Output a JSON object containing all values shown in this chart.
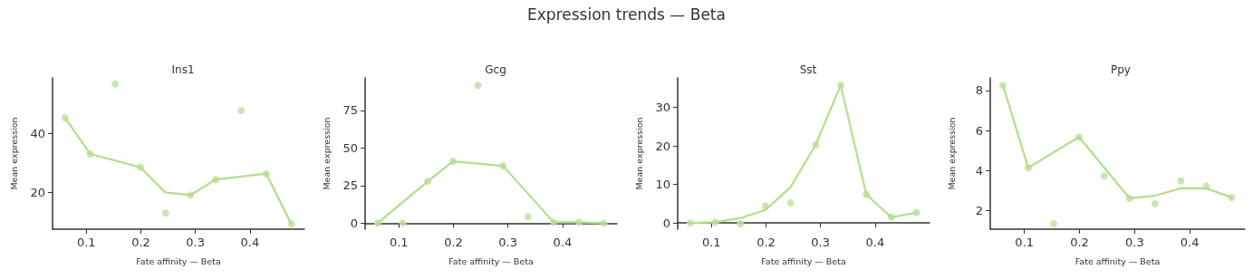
{
  "chart_data": [
    {
      "type": "scatter",
      "title": "Ins1",
      "annotations": [
        "Expression trends — Beta"
      ],
      "xlabel": "Fate affinity — Beta",
      "ylabel": "Mean expression",
      "xlim": [
        0.038,
        0.5
      ],
      "xticks": [
        0.1,
        0.2,
        0.3,
        0.4
      ],
      "ylim": [
        7.5,
        59
      ],
      "yticks": [
        20,
        40
      ],
      "grid": false,
      "line_style": "solid",
      "series": [
        {
          "color": "#bde3a0",
          "x": [
            0.061,
            0.107,
            0.153,
            0.199,
            0.245,
            0.291,
            0.337,
            0.384,
            0.43,
            0.476
          ],
          "values": [
            45.4,
            33.1,
            56.9,
            28.6,
            13.0,
            19.1,
            24.4,
            47.9,
            26.4,
            9.3
          ]
        },
        {
          "type": "line",
          "color": "#b2df8a",
          "x": [
            0.061,
            0.107,
            0.199,
            0.245,
            0.291,
            0.337,
            0.43,
            0.476
          ],
          "values": [
            45.4,
            33.1,
            28.6,
            20.0,
            19.1,
            24.4,
            26.4,
            9.3
          ]
        }
      ]
    },
    {
      "type": "scatter",
      "title": "Gcg",
      "xlabel": "Fate affinity — Beta",
      "ylabel": "Mean expression",
      "xlim": [
        0.038,
        0.5
      ],
      "xticks": [
        0.1,
        0.2,
        0.3,
        0.4
      ],
      "ylim": [
        -4,
        96.6
      ],
      "yticks": [
        0,
        25,
        50,
        75
      ],
      "grid": false,
      "line_style": "solid",
      "series": [
        {
          "color": "#bde3a0",
          "x": [
            0.061,
            0.107,
            0.153,
            0.199,
            0.245,
            0.291,
            0.337,
            0.384,
            0.43,
            0.476
          ],
          "values": [
            0,
            0,
            27.9,
            41.1,
            91.6,
            38.1,
            4.4,
            0.6,
            0.6,
            0
          ]
        },
        {
          "type": "line",
          "color": "#b2df8a",
          "x": [
            0.061,
            0.153,
            0.199,
            0.291,
            0.384,
            0.43,
            0.476
          ],
          "values": [
            0,
            27.9,
            41.1,
            38.1,
            0.6,
            0.6,
            0
          ]
        }
      ]
    },
    {
      "type": "scatter",
      "title": "Sst",
      "xlabel": "Fate affinity — Beta",
      "ylabel": "Mean expression",
      "xlim": [
        0.038,
        0.5
      ],
      "xticks": [
        0.1,
        0.2,
        0.3,
        0.4
      ],
      "ylim": [
        -1.6,
        37.7
      ],
      "yticks": [
        0,
        10,
        20,
        30
      ],
      "grid": false,
      "line_style": "solid",
      "series": [
        {
          "color": "#bde3a0",
          "x": [
            0.061,
            0.107,
            0.153,
            0.199,
            0.245,
            0.291,
            0.337,
            0.384,
            0.43,
            0.476
          ],
          "values": [
            0,
            0.2,
            -0.2,
            4.4,
            5.2,
            20.3,
            35.8,
            7.4,
            1.5,
            2.7
          ]
        },
        {
          "type": "line",
          "color": "#b2df8a",
          "x": [
            0.061,
            0.107,
            0.153,
            0.199,
            0.245,
            0.291,
            0.337,
            0.384,
            0.43,
            0.476
          ],
          "values": [
            0,
            0.2,
            1.3,
            3.4,
            9.3,
            20.3,
            35.8,
            7.4,
            1.5,
            2.7
          ]
        }
      ]
    },
    {
      "type": "scatter",
      "title": "Ppy",
      "xlabel": "Fate affinity — Beta",
      "ylabel": "Mean expression",
      "xlim": [
        0.038,
        0.5
      ],
      "xticks": [
        0.1,
        0.2,
        0.3,
        0.4
      ],
      "ylim": [
        1.08,
        8.63
      ],
      "yticks": [
        2,
        4,
        6,
        8
      ],
      "grid": false,
      "line_style": "solid",
      "series": [
        {
          "color": "#bde3a0",
          "x": [
            0.061,
            0.107,
            0.153,
            0.199,
            0.245,
            0.291,
            0.337,
            0.384,
            0.43,
            0.476
          ],
          "values": [
            8.26,
            4.15,
            1.35,
            5.68,
            3.74,
            2.62,
            2.35,
            3.49,
            3.22,
            2.66
          ]
        },
        {
          "type": "line",
          "color": "#b2df8a",
          "x": [
            0.061,
            0.107,
            0.199,
            0.291,
            0.337,
            0.384,
            0.43,
            0.476
          ],
          "values": [
            8.26,
            4.15,
            5.68,
            2.62,
            2.75,
            3.12,
            3.12,
            2.66
          ]
        }
      ]
    }
  ]
}
